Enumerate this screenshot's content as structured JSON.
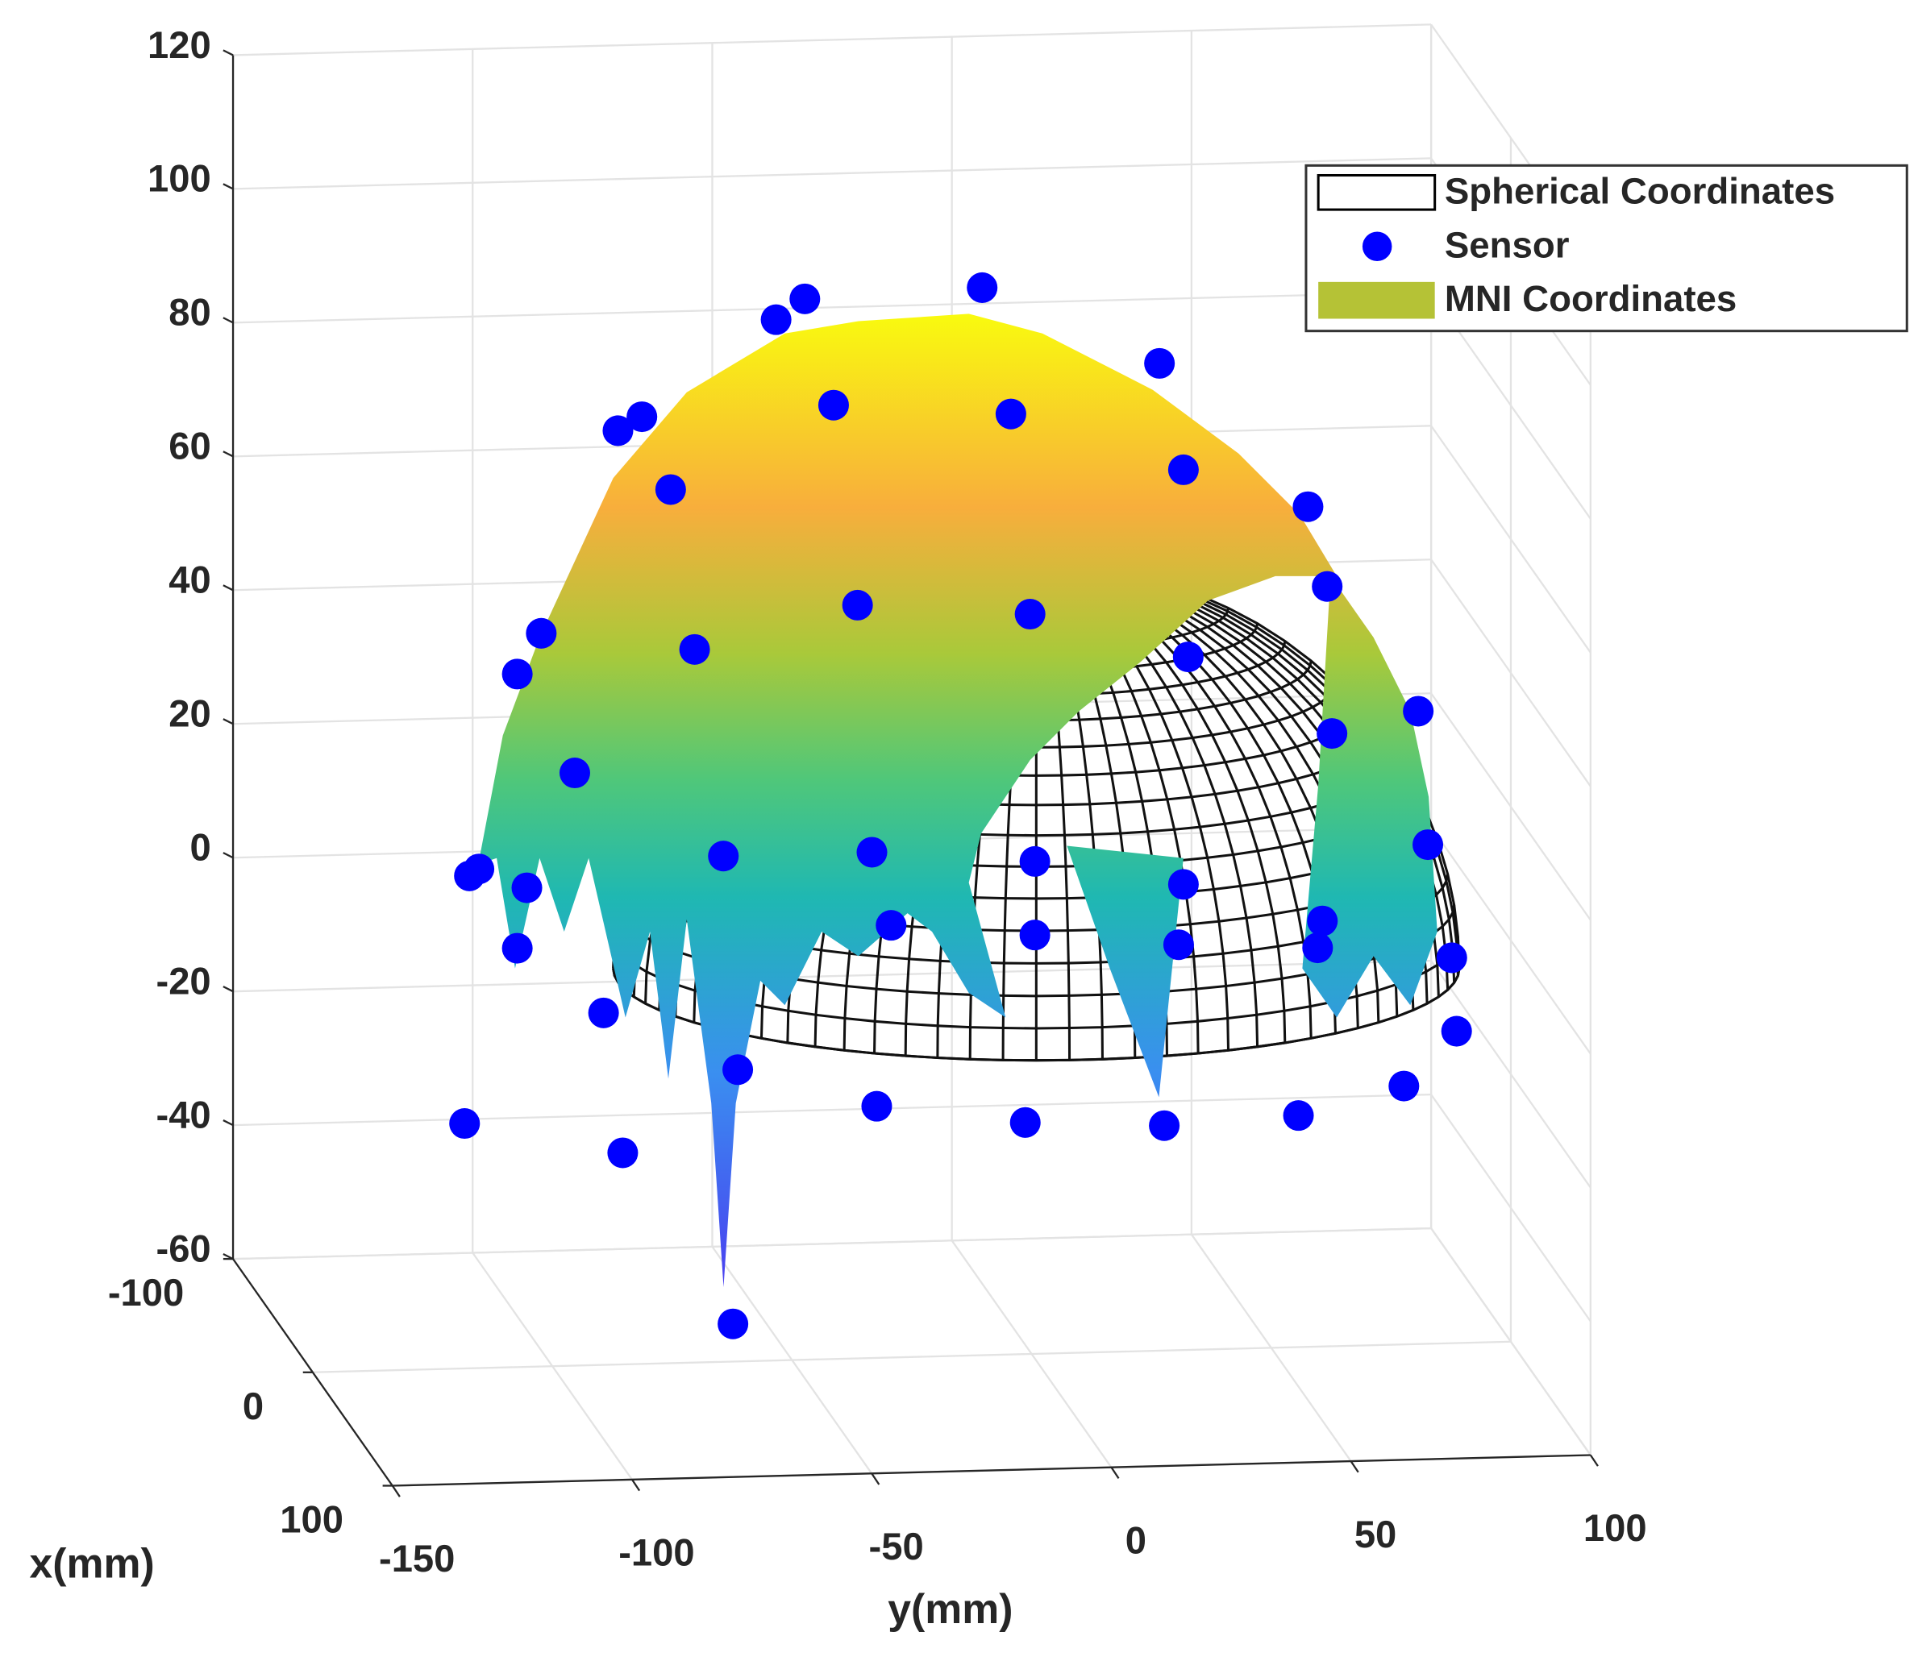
{
  "chart_data": {
    "type": "scatter3",
    "xlabel": "x(mm)",
    "ylabel": "y(mm)",
    "xlim": [
      -100,
      100
    ],
    "ylim": [
      -150,
      100
    ],
    "zlim": [
      -60,
      120
    ],
    "xticks": [
      -100,
      0,
      100
    ],
    "yticks": [
      -150,
      -100,
      -50,
      0,
      50,
      100
    ],
    "zticks": [
      -60,
      -40,
      -20,
      0,
      20,
      40,
      60,
      80,
      100,
      120
    ],
    "grid": true,
    "legend": "northeast",
    "series": [
      {
        "name": "Spherical Coordinates",
        "color": "#000000"
      },
      {
        "name": "Sensor",
        "color": "#0000ff",
        "y": [
          -45,
          -39,
          -2,
          35,
          -78,
          -73,
          -33,
          4,
          40,
          -67,
          66,
          70,
          -28,
          8,
          -94,
          -62,
          41,
          -99,
          89,
          71,
          -87,
          91,
          -109,
          -107,
          -56,
          -25,
          9,
          -97,
          40,
          -21,
          9,
          69,
          -99,
          39,
          68,
          96,
          -81,
          97,
          -53,
          -24,
          7,
          36,
          64,
          86,
          -110,
          -77,
          -54
        ],
        "z": [
          87,
          90,
          91,
          79,
          71,
          73,
          74,
          72,
          63,
          62,
          57,
          45,
          44,
          42,
          41,
          38,
          35,
          35,
          26,
          23,
          20,
          6,
          5,
          6,
          7,
          7,
          5,
          3,
          1,
          -4,
          -6,
          -5,
          -6,
          -8,
          -9,
          -11,
          -16,
          -22,
          -25,
          -31,
          -34,
          -35,
          -34,
          -30,
          -32,
          -37,
          -63
        ]
      },
      {
        "name": "MNI Coordinates",
        "color": "#b5c236"
      }
    ]
  }
}
